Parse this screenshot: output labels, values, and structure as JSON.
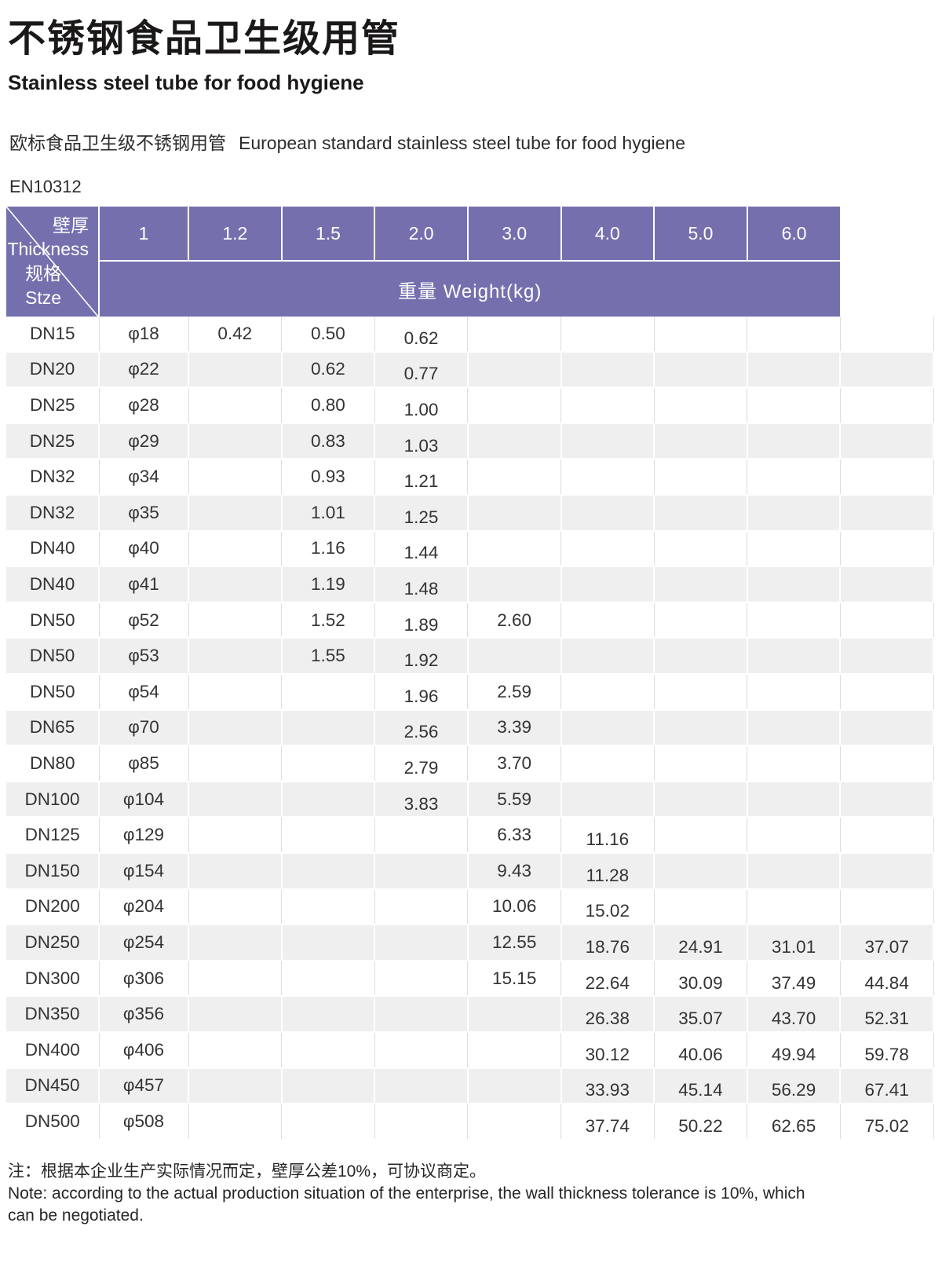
{
  "header": {
    "title_zh": "不锈钢食品卫生级用管",
    "title_en": "Stainless steel tube for food hygiene",
    "subtitle_zh": "欧标食品卫生级不锈钢用管",
    "subtitle_en": "European standard stainless steel tube for food hygiene",
    "standard": "EN10312"
  },
  "table": {
    "corner": {
      "thickness_zh": "壁厚",
      "thickness_en": "Thickness",
      "size_zh": "规格",
      "size_en": "Stze"
    },
    "thickness_columns": [
      "1",
      "1.2",
      "1.5",
      "2.0",
      "3.0",
      "4.0",
      "5.0",
      "6.0"
    ],
    "weight_header": "重量 Weight(kg)",
    "rows": [
      {
        "size": "DN15",
        "diameter": "φ18",
        "weights": [
          "0.42",
          "0.50",
          "0.62",
          "",
          "",
          "",
          "",
          ""
        ]
      },
      {
        "size": "DN20",
        "diameter": "φ22",
        "weights": [
          "",
          "0.62",
          "0.77",
          "",
          "",
          "",
          "",
          ""
        ]
      },
      {
        "size": "DN25",
        "diameter": "φ28",
        "weights": [
          "",
          "0.80",
          "1.00",
          "",
          "",
          "",
          "",
          ""
        ]
      },
      {
        "size": "DN25",
        "diameter": "φ29",
        "weights": [
          "",
          "0.83",
          "1.03",
          "",
          "",
          "",
          "",
          ""
        ]
      },
      {
        "size": "DN32",
        "diameter": "φ34",
        "weights": [
          "",
          "0.93",
          "1.21",
          "",
          "",
          "",
          "",
          ""
        ]
      },
      {
        "size": "DN32",
        "diameter": "φ35",
        "weights": [
          "",
          "1.01",
          "1.25",
          "",
          "",
          "",
          "",
          ""
        ]
      },
      {
        "size": "DN40",
        "diameter": "φ40",
        "weights": [
          "",
          "1.16",
          "1.44",
          "",
          "",
          "",
          "",
          ""
        ]
      },
      {
        "size": "DN40",
        "diameter": "φ41",
        "weights": [
          "",
          "1.19",
          "1.48",
          "",
          "",
          "",
          "",
          ""
        ]
      },
      {
        "size": "DN50",
        "diameter": "φ52",
        "weights": [
          "",
          "1.52",
          "1.89",
          "2.60",
          "",
          "",
          "",
          ""
        ]
      },
      {
        "size": "DN50",
        "diameter": "φ53",
        "weights": [
          "",
          "1.55",
          "1.92",
          "",
          "",
          "",
          "",
          ""
        ]
      },
      {
        "size": "DN50",
        "diameter": "φ54",
        "weights": [
          "",
          "",
          "1.96",
          "2.59",
          "",
          "",
          "",
          ""
        ]
      },
      {
        "size": "DN65",
        "diameter": "φ70",
        "weights": [
          "",
          "",
          "2.56",
          "3.39",
          "",
          "",
          "",
          ""
        ]
      },
      {
        "size": "DN80",
        "diameter": "φ85",
        "weights": [
          "",
          "",
          "2.79",
          "3.70",
          "",
          "",
          "",
          ""
        ]
      },
      {
        "size": "DN100",
        "diameter": "φ104",
        "weights": [
          "",
          "",
          "3.83",
          "5.59",
          "",
          "",
          "",
          ""
        ]
      },
      {
        "size": "DN125",
        "diameter": "φ129",
        "weights": [
          "",
          "",
          "",
          "6.33",
          "11.16",
          "",
          "",
          ""
        ]
      },
      {
        "size": "DN150",
        "diameter": "φ154",
        "weights": [
          "",
          "",
          "",
          "9.43",
          "11.28",
          "",
          "",
          ""
        ]
      },
      {
        "size": "DN200",
        "diameter": "φ204",
        "weights": [
          "",
          "",
          "",
          "10.06",
          "15.02",
          "",
          "",
          ""
        ]
      },
      {
        "size": "DN250",
        "diameter": "φ254",
        "weights": [
          "",
          "",
          "",
          "12.55",
          "18.76",
          "24.91",
          "31.01",
          "37.07"
        ]
      },
      {
        "size": "DN300",
        "diameter": "φ306",
        "weights": [
          "",
          "",
          "",
          "15.15",
          "22.64",
          "30.09",
          "37.49",
          "44.84"
        ]
      },
      {
        "size": "DN350",
        "diameter": "φ356",
        "weights": [
          "",
          "",
          "",
          "",
          "26.38",
          "35.07",
          "43.70",
          "52.31"
        ]
      },
      {
        "size": "DN400",
        "diameter": "φ406",
        "weights": [
          "",
          "",
          "",
          "",
          "30.12",
          "40.06",
          "49.94",
          "59.78"
        ]
      },
      {
        "size": "DN450",
        "diameter": "φ457",
        "weights": [
          "",
          "",
          "",
          "",
          "33.93",
          "45.14",
          "56.29",
          "67.41"
        ]
      },
      {
        "size": "DN500",
        "diameter": "φ508",
        "weights": [
          "",
          "",
          "",
          "",
          "37.74",
          "50.22",
          "62.65",
          "75.02"
        ]
      }
    ]
  },
  "note": {
    "zh": "注：根据本企业生产实际情况而定，壁厚公差10%，可协议商定。",
    "en": "Note: according to the actual production situation of the enterprise, the wall thickness tolerance is 10%, which can be negotiated."
  },
  "colors": {
    "header_purple": "#7470ae",
    "stripe_gray": "#efefef"
  }
}
